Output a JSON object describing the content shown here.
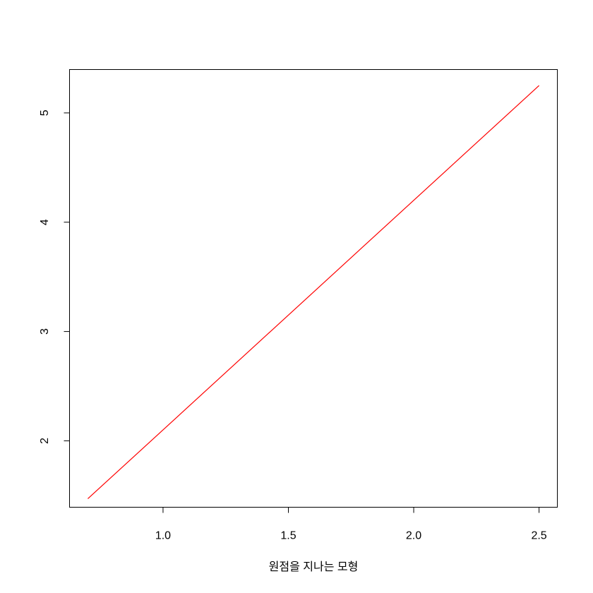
{
  "chart_data": {
    "type": "line",
    "title": "",
    "xlabel": "원점을 지나는 모형",
    "ylabel": "",
    "xlim": [
      0.627,
      2.573
    ],
    "ylim": [
      1.3924,
      5.3967
    ],
    "x_ticks": [
      1.0,
      1.5,
      2.0,
      2.5
    ],
    "x_tick_labels": [
      "1.0",
      "1.5",
      "2.0",
      "2.5"
    ],
    "y_ticks": [
      2,
      3,
      4,
      5
    ],
    "y_tick_labels": [
      "2",
      "3",
      "4",
      "5"
    ],
    "grid": false,
    "legend": "none",
    "series": [
      {
        "color": "#ff0000",
        "x": [
          0.7,
          2.5
        ],
        "y": [
          1.47,
          5.25
        ]
      }
    ]
  }
}
